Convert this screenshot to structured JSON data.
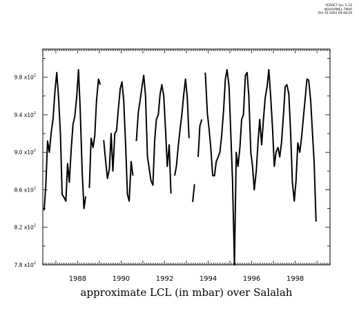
{
  "stamp": {
    "line1": "FERRET Ver. 5.33",
    "line2": "NOAA/PMEL TMAP",
    "line3": "Oct 30 2002 09:48:29"
  },
  "chart_data": {
    "type": "line",
    "title": "",
    "xlabel": "approximate LCL (in mbar) over Salalah",
    "ylabel": "",
    "xlim": [
      1986.4,
      1999.6
    ],
    "ylim": [
      780,
      1010
    ],
    "x_ticks": [
      "1988",
      "1990",
      "1992",
      "1994",
      "1996",
      "1998"
    ],
    "x_tick_values": [
      1988,
      1990,
      1992,
      1994,
      1996,
      1998
    ],
    "y_tick_values": [
      780,
      820,
      860,
      900,
      940,
      980
    ],
    "y_tick_labels": [
      {
        "mantissa": "7.8",
        "times": "x10",
        "exp": "2"
      },
      {
        "mantissa": "8.2",
        "times": "x10",
        "exp": "2"
      },
      {
        "mantissa": "8.6",
        "times": "x10",
        "exp": "2"
      },
      {
        "mantissa": "9.0",
        "times": "x10",
        "exp": "2"
      },
      {
        "mantissa": "9.4",
        "times": "x10",
        "exp": "2"
      },
      {
        "mantissa": "9.8",
        "times": "x10",
        "exp": "2"
      }
    ],
    "grid": false,
    "legend": "none",
    "line_color": "#000000",
    "series": [
      {
        "segments": [
          [
            [
              1986.46,
              838
            ],
            [
              1986.54,
              865
            ],
            [
              1986.62,
              912
            ],
            [
              1986.7,
              900
            ],
            [
              1986.79,
              922
            ],
            [
              1986.87,
              935
            ],
            [
              1986.96,
              965
            ],
            [
              1987.04,
              985
            ],
            [
              1987.12,
              960
            ],
            [
              1987.21,
              920
            ],
            [
              1987.29,
              855
            ],
            [
              1987.37,
              852
            ],
            [
              1987.46,
              848
            ],
            [
              1987.54,
              888
            ],
            [
              1987.62,
              868
            ],
            [
              1987.71,
              905
            ],
            [
              1987.79,
              930
            ],
            [
              1987.87,
              938
            ],
            [
              1987.96,
              960
            ],
            [
              1988.04,
              988
            ],
            [
              1988.12,
              945
            ],
            [
              1988.21,
              880
            ],
            [
              1988.29,
              840
            ],
            [
              1988.37,
              853
            ]
          ],
          [
            [
              1988.54,
              862
            ],
            [
              1988.62,
              915
            ],
            [
              1988.71,
              905
            ],
            [
              1988.79,
              918
            ],
            [
              1988.87,
              955
            ],
            [
              1988.96,
              978
            ],
            [
              1989.04,
              972
            ]
          ],
          [
            [
              1989.2,
              913
            ],
            [
              1989.29,
              890
            ],
            [
              1989.37,
              872
            ],
            [
              1989.46,
              882
            ],
            [
              1989.54,
              920
            ],
            [
              1989.62,
              880
            ],
            [
              1989.71,
              920
            ],
            [
              1989.79,
              923
            ],
            [
              1989.87,
              946
            ],
            [
              1989.96,
              968
            ],
            [
              1990.04,
              975
            ],
            [
              1990.12,
              955
            ],
            [
              1990.21,
              905
            ],
            [
              1990.29,
              855
            ],
            [
              1990.37,
              848
            ],
            [
              1990.46,
              890
            ],
            [
              1990.54,
              875
            ]
          ],
          [
            [
              1990.7,
              912
            ],
            [
              1990.79,
              943
            ],
            [
              1990.87,
              955
            ],
            [
              1990.96,
              970
            ],
            [
              1991.04,
              982
            ],
            [
              1991.12,
              960
            ],
            [
              1991.21,
              895
            ],
            [
              1991.29,
              883
            ],
            [
              1991.37,
              870
            ],
            [
              1991.46,
              865
            ],
            [
              1991.54,
              912
            ],
            [
              1991.62,
              935
            ],
            [
              1991.71,
              940
            ],
            [
              1991.79,
              962
            ],
            [
              1991.87,
              972
            ],
            [
              1991.96,
              960
            ],
            [
              1992.04,
              925
            ],
            [
              1992.12,
              885
            ],
            [
              1992.21,
              908
            ],
            [
              1992.29,
              856
            ]
          ],
          [
            [
              1992.46,
              875
            ],
            [
              1992.54,
              885
            ],
            [
              1992.62,
              905
            ],
            [
              1992.71,
              925
            ],
            [
              1992.79,
              940
            ],
            [
              1992.87,
              960
            ],
            [
              1992.96,
              978
            ],
            [
              1993.04,
              958
            ],
            [
              1993.12,
              915
            ]
          ],
          [
            [
              1993.29,
              847
            ],
            [
              1993.37,
              866
            ]
          ],
          [
            [
              1993.54,
              895
            ],
            [
              1993.62,
              928
            ],
            [
              1993.71,
              935
            ]
          ],
          [
            [
              1993.87,
              985
            ],
            [
              1993.96,
              942
            ],
            [
              1994.04,
              925
            ],
            [
              1994.12,
              905
            ],
            [
              1994.21,
              875
            ],
            [
              1994.29,
              875
            ],
            [
              1994.37,
              890
            ],
            [
              1994.46,
              895
            ],
            [
              1994.54,
              900
            ],
            [
              1994.62,
              918
            ],
            [
              1994.71,
              945
            ],
            [
              1994.79,
              978
            ],
            [
              1994.87,
              988
            ],
            [
              1994.96,
              970
            ],
            [
              1995.04,
              920
            ],
            [
              1995.12,
              870
            ],
            [
              1995.21,
              780
            ],
            [
              1995.29,
              900
            ],
            [
              1995.37,
              885
            ],
            [
              1995.46,
              905
            ],
            [
              1995.54,
              935
            ],
            [
              1995.62,
              940
            ],
            [
              1995.71,
              982
            ],
            [
              1995.79,
              985
            ],
            [
              1995.87,
              960
            ],
            [
              1995.96,
              900
            ],
            [
              1996.04,
              885
            ],
            [
              1996.12,
              860
            ],
            [
              1996.21,
              880
            ],
            [
              1996.29,
              910
            ],
            [
              1996.37,
              935
            ],
            [
              1996.46,
              908
            ],
            [
              1996.54,
              935
            ],
            [
              1996.62,
              958
            ],
            [
              1996.71,
              970
            ],
            [
              1996.79,
              988
            ],
            [
              1996.87,
              960
            ],
            [
              1996.96,
              925
            ],
            [
              1997.04,
              885
            ],
            [
              1997.12,
              900
            ],
            [
              1997.21,
              905
            ],
            [
              1997.29,
              895
            ],
            [
              1997.37,
              910
            ],
            [
              1997.46,
              940
            ],
            [
              1997.54,
              970
            ],
            [
              1997.62,
              972
            ],
            [
              1997.71,
              962
            ],
            [
              1997.79,
              920
            ],
            [
              1997.87,
              868
            ],
            [
              1997.96,
              848
            ],
            [
              1998.04,
              870
            ],
            [
              1998.12,
              910
            ],
            [
              1998.21,
              900
            ],
            [
              1998.29,
              915
            ],
            [
              1998.37,
              935
            ],
            [
              1998.46,
              958
            ],
            [
              1998.54,
              978
            ],
            [
              1998.62,
              977
            ],
            [
              1998.71,
              955
            ],
            [
              1998.79,
              922
            ],
            [
              1998.87,
              890
            ],
            [
              1998.96,
              826
            ]
          ]
        ]
      }
    ]
  }
}
